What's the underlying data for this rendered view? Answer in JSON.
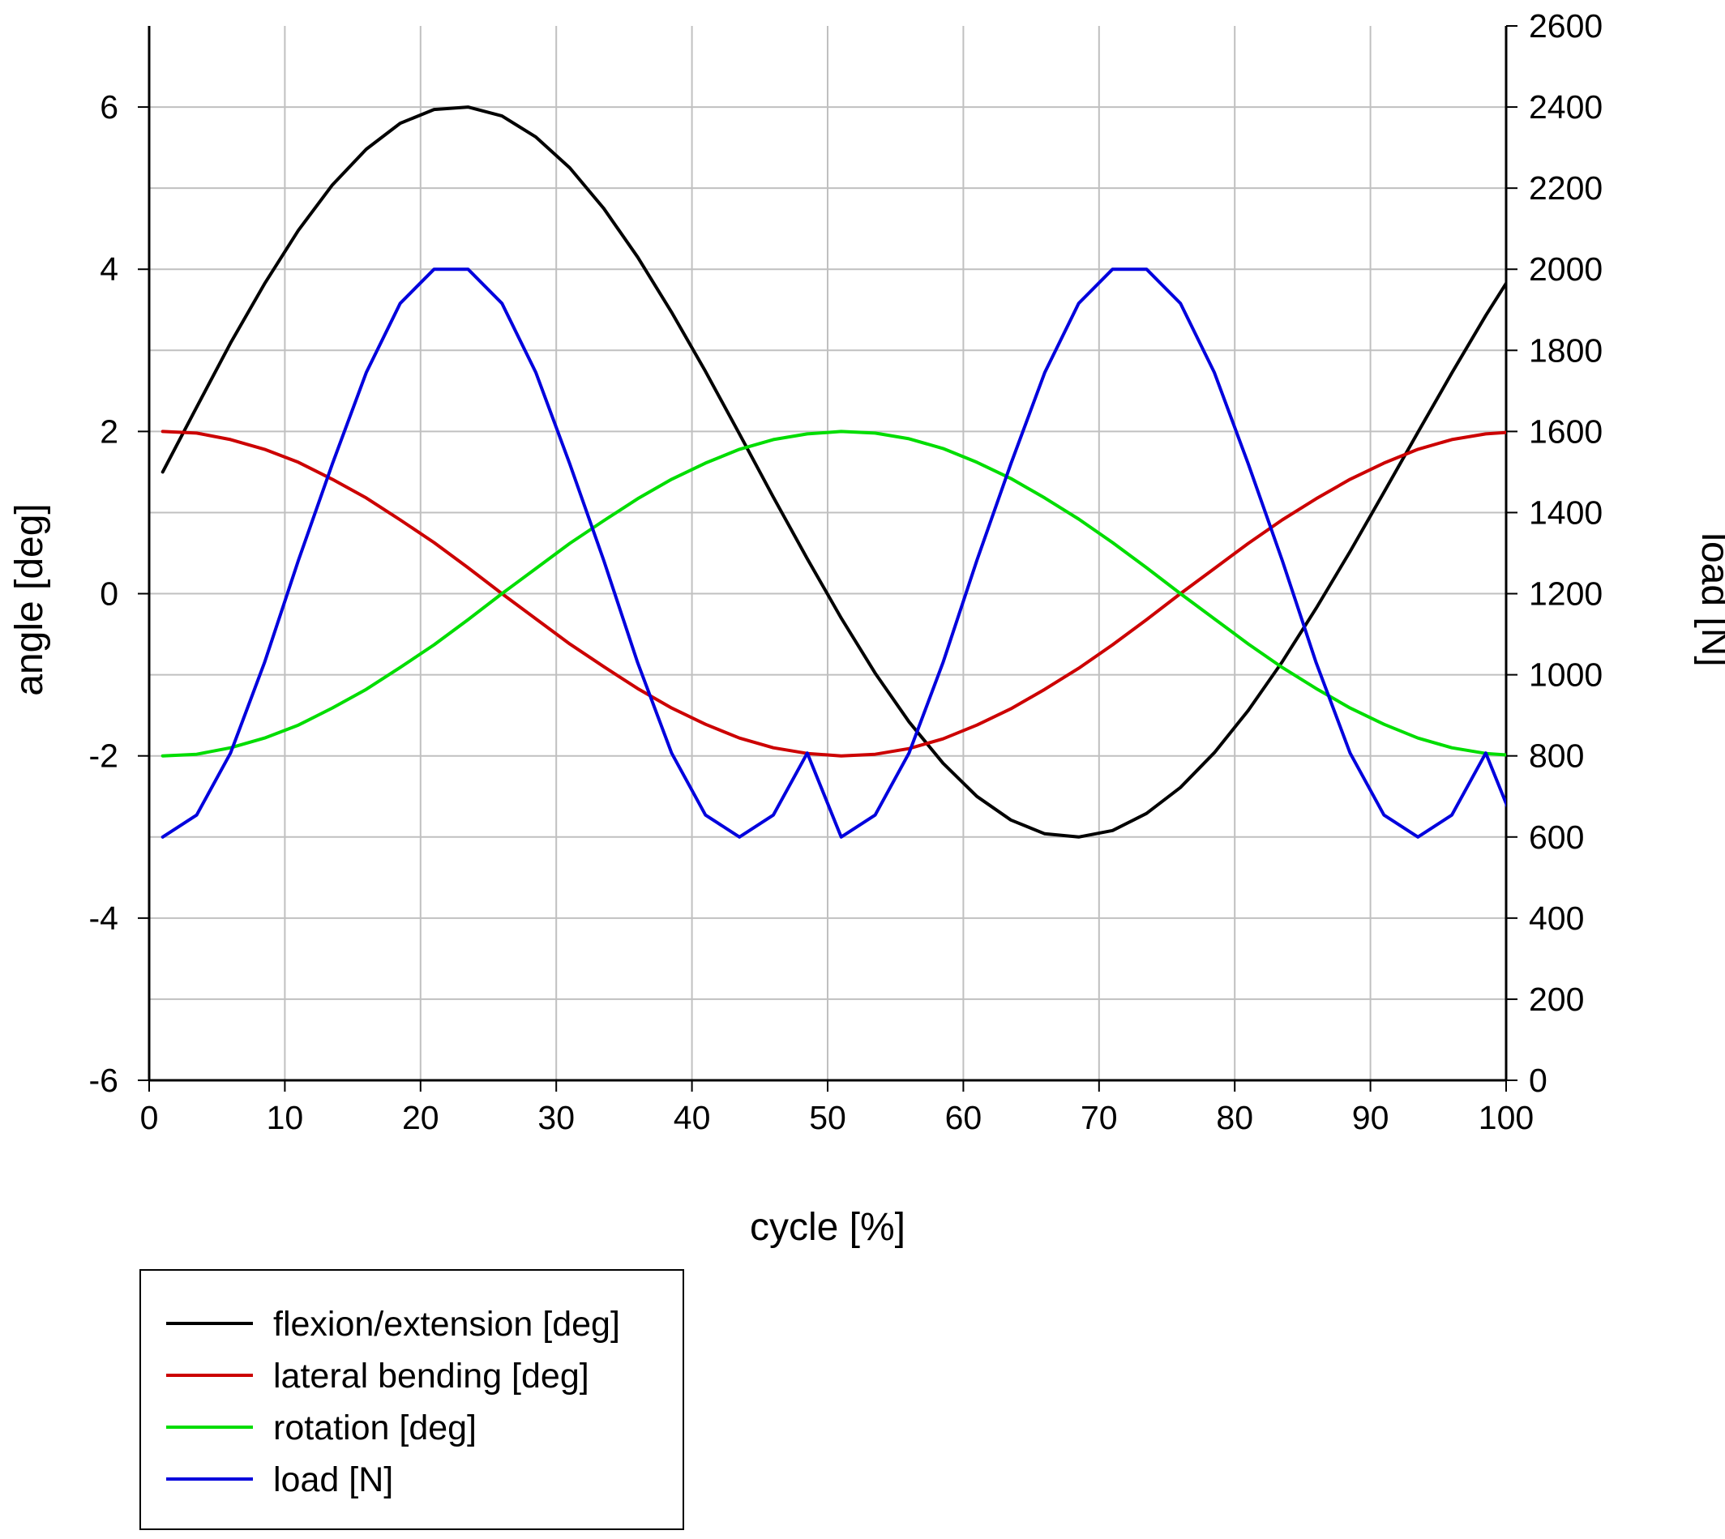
{
  "chart_data": {
    "type": "line",
    "xlabel": "cycle [%]",
    "ylabel": "angle [deg]",
    "y2label": "load [N]",
    "xlim": [
      0,
      100
    ],
    "ylim": [
      -6,
      7
    ],
    "y2lim": [
      0,
      2600
    ],
    "x_ticks": [
      0,
      10,
      20,
      30,
      40,
      50,
      60,
      70,
      80,
      90,
      100
    ],
    "y_ticks": [
      -6,
      -4,
      -2,
      0,
      2,
      4,
      6
    ],
    "y2_ticks": [
      0,
      200,
      400,
      600,
      800,
      1000,
      1200,
      1400,
      1600,
      1800,
      2000,
      2200,
      2400,
      2600
    ],
    "grid": true,
    "legend_position": "bottom-left, below plot",
    "x": [
      1,
      3.5,
      6,
      8.5,
      11,
      13.5,
      16,
      18.5,
      21,
      23.5,
      26,
      28.5,
      31,
      33.5,
      36,
      38.5,
      41,
      43.5,
      46,
      48.5,
      51,
      53.5,
      56,
      58.5,
      61,
      63.5,
      66,
      68.5,
      71,
      73.5,
      76,
      78.5,
      81,
      83.5,
      86,
      88.5,
      91,
      93.5,
      96,
      98.5,
      101
    ],
    "series": [
      {
        "name": "flexion/extension [deg]",
        "axis": "left",
        "color": "#000000",
        "values": [
          1.5,
          2.3,
          3.09,
          3.82,
          4.48,
          5.04,
          5.48,
          5.8,
          5.97,
          6.0,
          5.89,
          5.63,
          5.25,
          4.75,
          4.15,
          3.47,
          2.74,
          1.97,
          1.19,
          0.43,
          -0.3,
          -0.98,
          -1.58,
          -2.09,
          -2.5,
          -2.79,
          -2.96,
          -3.0,
          -2.92,
          -2.71,
          -2.39,
          -1.96,
          -1.44,
          -0.84,
          -0.18,
          0.52,
          1.25,
          1.99,
          2.72,
          3.43,
          4.09
        ]
      },
      {
        "name": "lateral bending [deg]",
        "axis": "left",
        "color": "#cc0000",
        "values": [
          2.0,
          1.98,
          1.9,
          1.78,
          1.62,
          1.41,
          1.18,
          0.91,
          0.63,
          0.32,
          0.0,
          -0.31,
          -0.62,
          -0.9,
          -1.17,
          -1.41,
          -1.61,
          -1.78,
          -1.9,
          -1.97,
          -2.0,
          -1.98,
          -1.91,
          -1.79,
          -1.62,
          -1.42,
          -1.18,
          -0.92,
          -0.63,
          -0.32,
          0.0,
          0.31,
          0.62,
          0.91,
          1.17,
          1.41,
          1.61,
          1.78,
          1.9,
          1.97,
          2.0
        ]
      },
      {
        "name": "rotation [deg]",
        "axis": "left",
        "color": "#00dd00",
        "values": [
          -2.0,
          -1.98,
          -1.9,
          -1.78,
          -1.62,
          -1.41,
          -1.18,
          -0.91,
          -0.63,
          -0.32,
          0.0,
          0.31,
          0.62,
          0.9,
          1.17,
          1.41,
          1.61,
          1.78,
          1.9,
          1.97,
          2.0,
          1.98,
          1.91,
          1.79,
          1.62,
          1.42,
          1.18,
          0.92,
          0.63,
          0.32,
          0.0,
          -0.31,
          -0.62,
          -0.91,
          -1.17,
          -1.41,
          -1.61,
          -1.78,
          -1.9,
          -1.97,
          -2.0
        ]
      },
      {
        "name": "load [N]",
        "axis": "right",
        "color": "#0000dd",
        "values": [
          600,
          654,
          807,
          1030,
          1282,
          1520,
          1745,
          1916,
          2000,
          2000,
          1916,
          1745,
          1520,
          1282,
          1030,
          807,
          654,
          600,
          654,
          807,
          600,
          654,
          807,
          1030,
          1282,
          1520,
          1745,
          1916,
          2000,
          2000,
          1916,
          1745,
          1520,
          1282,
          1030,
          807,
          654,
          600,
          654,
          807,
          600
        ]
      }
    ]
  }
}
